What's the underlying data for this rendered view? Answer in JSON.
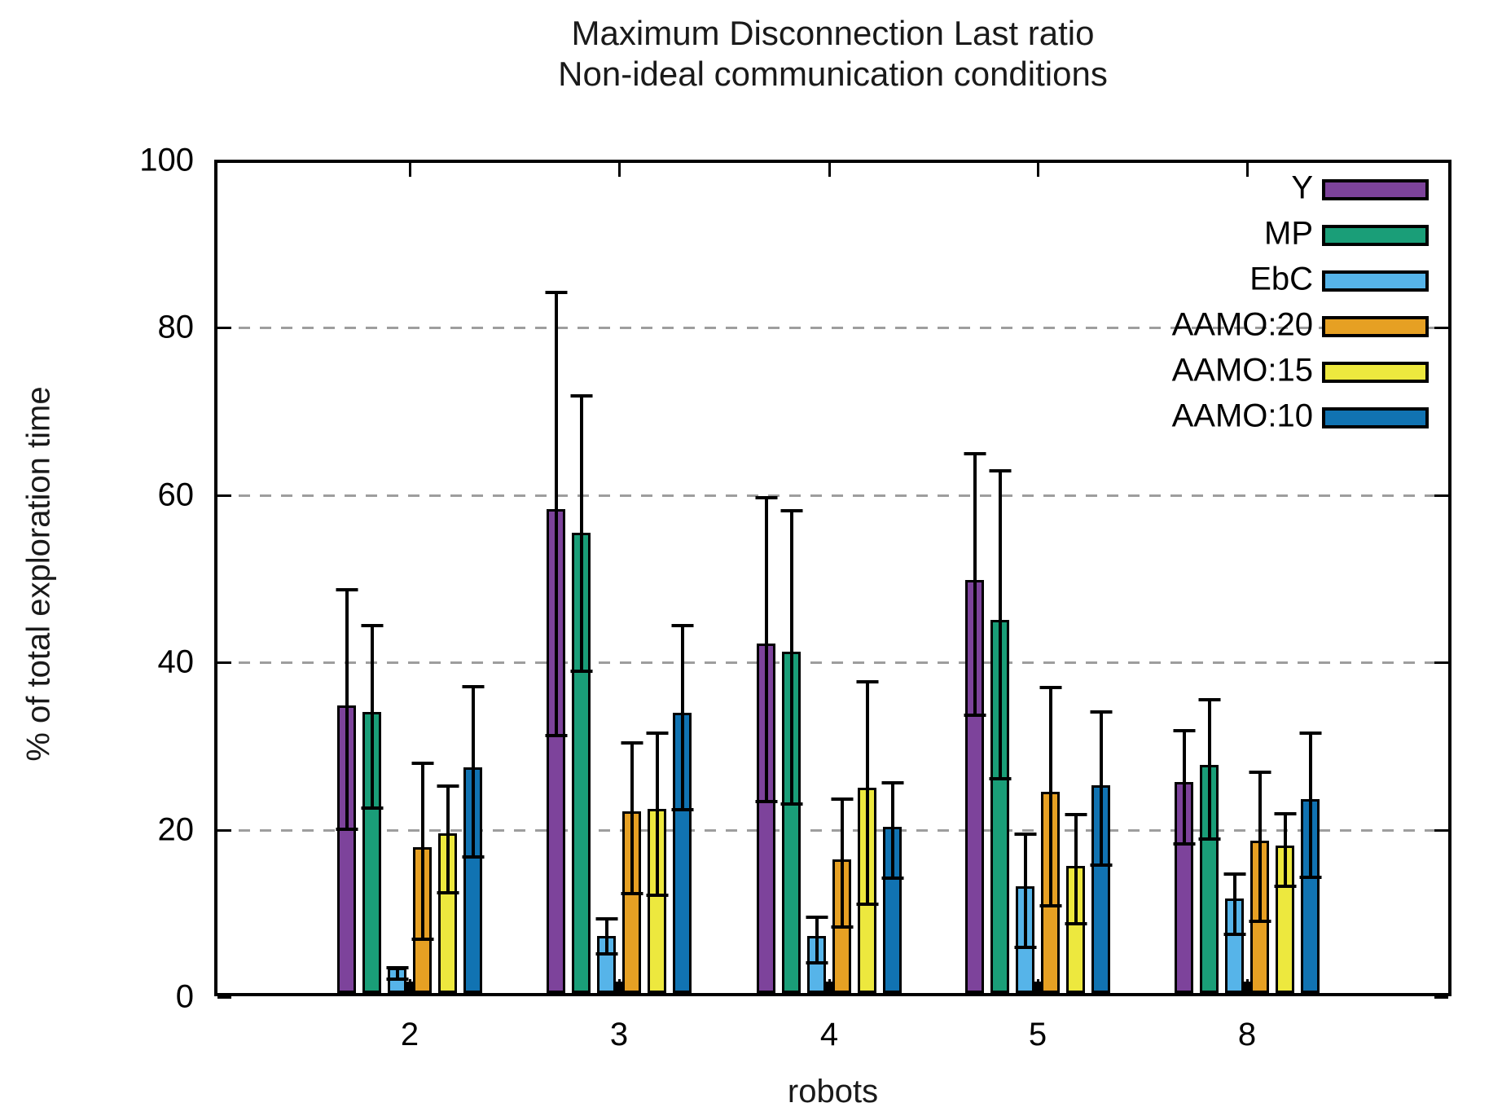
{
  "title": {
    "line1": "Maximum Disconnection Last ratio",
    "line2": "Non-ideal communication conditions"
  },
  "axes": {
    "y_label": "% of total exploration time",
    "x_label": "robots",
    "y_ticks": [
      0,
      20,
      40,
      60,
      80,
      100
    ],
    "x_categories": [
      "2",
      "3",
      "4",
      "5",
      "8"
    ]
  },
  "legend": [
    {
      "label": "Y",
      "color": "#7D439B"
    },
    {
      "label": "MP",
      "color": "#1A9E78"
    },
    {
      "label": "EbC",
      "color": "#56B4E9"
    },
    {
      "label": "AAMO:20",
      "color": "#E6A023"
    },
    {
      "label": "AAMO:15",
      "color": "#EDE83E"
    },
    {
      "label": "AAMO:10",
      "color": "#1173B2"
    }
  ],
  "chart_data": {
    "type": "bar",
    "title": "Maximum Disconnection Last ratio — Non-ideal communication conditions",
    "categories": [
      "2",
      "3",
      "4",
      "5",
      "8"
    ],
    "xlabel": "robots",
    "ylabel": "% of total exploration time",
    "ylim": [
      0,
      100
    ],
    "grid": "horizontal dashed at 20,40,60,80",
    "legend_position": "top-right inside plot",
    "error_bars": true,
    "series": [
      {
        "name": "Y",
        "color": "#7D439B",
        "values": [
          34.4,
          57.8,
          41.8,
          49.4,
          25.2
        ],
        "err_low": [
          20.2,
          31.4,
          23.5,
          33.8,
          18.4
        ],
        "err_high": [
          48.8,
          84.3,
          59.8,
          65.0,
          31.9
        ]
      },
      {
        "name": "MP",
        "color": "#1A9E78",
        "values": [
          33.6,
          55.0,
          40.8,
          44.6,
          27.3
        ],
        "err_low": [
          22.7,
          39.0,
          23.2,
          26.2,
          19.0
        ],
        "err_high": [
          44.5,
          72.0,
          58.2,
          63.0,
          35.6
        ]
      },
      {
        "name": "EbC",
        "color": "#56B4E9",
        "values": [
          3.0,
          6.8,
          6.8,
          12.8,
          11.3
        ],
        "err_low": [
          2.2,
          5.3,
          4.2,
          6.0,
          7.6
        ],
        "err_high": [
          3.6,
          9.4,
          9.6,
          19.6,
          14.8
        ]
      },
      {
        "name": "AAMO:20",
        "color": "#E6A023",
        "values": [
          17.4,
          21.7,
          16.0,
          24.1,
          18.2
        ],
        "err_low": [
          7.0,
          12.5,
          8.5,
          11.0,
          9.2
        ],
        "err_high": [
          28.0,
          30.5,
          23.8,
          37.1,
          27.0
        ]
      },
      {
        "name": "AAMO:15",
        "color": "#EDE83E",
        "values": [
          19.1,
          22.0,
          24.5,
          15.2,
          17.6
        ],
        "err_low": [
          12.6,
          12.3,
          11.2,
          8.9,
          13.3
        ],
        "err_high": [
          25.3,
          31.6,
          37.8,
          21.9,
          22.0
        ]
      },
      {
        "name": "AAMO:10",
        "color": "#1173B2",
        "values": [
          27.0,
          33.5,
          19.9,
          24.8,
          23.2
        ],
        "err_low": [
          16.8,
          22.5,
          14.3,
          15.9,
          14.4
        ],
        "err_high": [
          37.2,
          44.5,
          25.7,
          34.2,
          31.6
        ]
      }
    ]
  }
}
